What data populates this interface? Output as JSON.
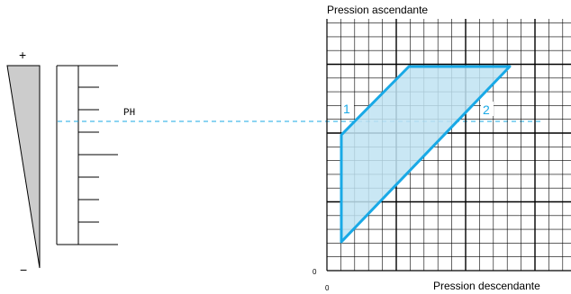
{
  "scale": {
    "plus_sign": "+",
    "minus_sign": "−",
    "ph_label": "PH"
  },
  "graph": {
    "y_axis_title": "Pression ascendante",
    "x_axis_title": "Pression descendante",
    "y_origin_label": "0",
    "x_origin_label": "0",
    "region_label_1": "1",
    "region_label_2": "2"
  },
  "colors": {
    "accent": "#19a9e6",
    "region_fill": "#bfe3f2",
    "wedge_fill": "#cccccc",
    "grid": "#000000"
  }
}
